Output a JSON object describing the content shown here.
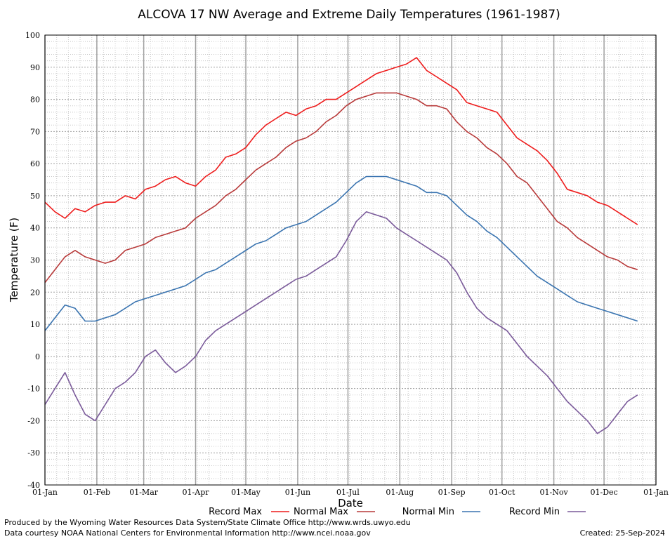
{
  "chart_data": {
    "type": "line",
    "title": "ALCOVA 17 NW Average and Extreme Daily Temperatures (1961-1987)",
    "xlabel": "Date",
    "ylabel": "Temperature (F)",
    "ylim": [
      -40,
      100
    ],
    "yticks": [
      "100",
      "90",
      "80",
      "70",
      "60",
      "50",
      "40",
      "30",
      "20",
      "10",
      "0",
      "-10",
      "-20",
      "-30",
      "-40"
    ],
    "xticks": [
      "01-Jan",
      "01-Feb",
      "01-Mar",
      "01-Apr",
      "01-May",
      "01-Jun",
      "01-Jul",
      "01-Aug",
      "01-Sep",
      "01-Oct",
      "01-Nov",
      "01-Dec",
      "01-Jan"
    ],
    "grid": true,
    "legend_position": "bottom",
    "month_x": [
      1,
      32,
      60,
      91,
      121,
      152,
      182,
      213,
      244,
      274,
      305,
      335,
      366
    ],
    "series": [
      {
        "name": "Record Max",
        "color": "#ee1c1c",
        "values": [
          48,
          45,
          43,
          46,
          45,
          47,
          48,
          48,
          50,
          49,
          52,
          53,
          55,
          56,
          54,
          53,
          56,
          58,
          62,
          63,
          65,
          69,
          72,
          74,
          76,
          75,
          77,
          78,
          80,
          80,
          82,
          84,
          86,
          88,
          89,
          90,
          91,
          93,
          89,
          87,
          85,
          83,
          79,
          78,
          77,
          76,
          72,
          68,
          66,
          64,
          61,
          57,
          52,
          51,
          50,
          48,
          47,
          45,
          43,
          41
        ],
        "x": [
          1,
          7,
          13,
          19,
          25,
          31,
          37,
          43,
          49,
          55,
          61,
          67,
          73,
          79,
          85,
          91,
          97,
          103,
          109,
          115,
          121,
          127,
          133,
          139,
          145,
          151,
          157,
          163,
          169,
          175,
          181,
          187,
          193,
          199,
          205,
          211,
          217,
          223,
          229,
          235,
          241,
          247,
          253,
          259,
          265,
          271,
          277,
          283,
          289,
          295,
          301,
          307,
          313,
          319,
          325,
          331,
          337,
          343,
          349,
          355
        ]
      },
      {
        "name": "Normal Max",
        "color": "#b83a3a",
        "values": [
          23,
          27,
          31,
          33,
          31,
          30,
          29,
          30,
          33,
          34,
          35,
          37,
          38,
          39,
          40,
          43,
          45,
          47,
          50,
          52,
          55,
          58,
          60,
          62,
          65,
          67,
          68,
          70,
          73,
          75,
          78,
          80,
          81,
          82,
          82,
          82,
          81,
          80,
          78,
          78,
          77,
          73,
          70,
          68,
          65,
          63,
          60,
          56,
          54,
          50,
          46,
          42,
          40,
          37,
          35,
          33,
          31,
          30,
          28,
          27
        ],
        "x": [
          1,
          7,
          13,
          19,
          25,
          31,
          37,
          43,
          49,
          55,
          61,
          67,
          73,
          79,
          85,
          91,
          97,
          103,
          109,
          115,
          121,
          127,
          133,
          139,
          145,
          151,
          157,
          163,
          169,
          175,
          181,
          187,
          193,
          199,
          205,
          211,
          217,
          223,
          229,
          235,
          241,
          247,
          253,
          259,
          265,
          271,
          277,
          283,
          289,
          295,
          301,
          307,
          313,
          319,
          325,
          331,
          337,
          343,
          349,
          355
        ]
      },
      {
        "name": "Normal Min",
        "color": "#3a74b0",
        "values": [
          8,
          12,
          16,
          15,
          11,
          11,
          12,
          13,
          15,
          17,
          18,
          19,
          20,
          21,
          22,
          24,
          26,
          27,
          29,
          31,
          33,
          35,
          36,
          38,
          40,
          41,
          42,
          44,
          46,
          48,
          51,
          54,
          56,
          56,
          56,
          55,
          54,
          53,
          51,
          51,
          50,
          47,
          44,
          42,
          39,
          37,
          34,
          31,
          28,
          25,
          23,
          21,
          19,
          17,
          16,
          15,
          14,
          13,
          12,
          11
        ],
        "x": [
          1,
          7,
          13,
          19,
          25,
          31,
          37,
          43,
          49,
          55,
          61,
          67,
          73,
          79,
          85,
          91,
          97,
          103,
          109,
          115,
          121,
          127,
          133,
          139,
          145,
          151,
          157,
          163,
          169,
          175,
          181,
          187,
          193,
          199,
          205,
          211,
          217,
          223,
          229,
          235,
          241,
          247,
          253,
          259,
          265,
          271,
          277,
          283,
          289,
          295,
          301,
          307,
          313,
          319,
          325,
          331,
          337,
          343,
          349,
          355
        ]
      },
      {
        "name": "Record Min",
        "color": "#7a5a9a",
        "values": [
          -15,
          -10,
          -5,
          -12,
          -18,
          -20,
          -15,
          -10,
          -8,
          -5,
          0,
          2,
          -2,
          -5,
          -3,
          0,
          5,
          8,
          10,
          12,
          14,
          16,
          18,
          20,
          22,
          24,
          25,
          27,
          29,
          31,
          36,
          42,
          45,
          44,
          43,
          40,
          38,
          36,
          34,
          32,
          30,
          26,
          20,
          15,
          12,
          10,
          8,
          4,
          0,
          -3,
          -6,
          -10,
          -14,
          -17,
          -20,
          -24,
          -22,
          -18,
          -14,
          -12
        ],
        "x": [
          1,
          7,
          13,
          19,
          25,
          31,
          37,
          43,
          49,
          55,
          61,
          67,
          73,
          79,
          85,
          91,
          97,
          103,
          109,
          115,
          121,
          127,
          133,
          139,
          145,
          151,
          157,
          163,
          169,
          175,
          181,
          187,
          193,
          199,
          205,
          211,
          217,
          223,
          229,
          235,
          241,
          247,
          253,
          259,
          265,
          271,
          277,
          283,
          289,
          295,
          301,
          307,
          313,
          319,
          325,
          331,
          337,
          343,
          349,
          355
        ]
      }
    ]
  },
  "footer": {
    "line1": "Produced by the Wyoming Water Resources Data System/State Climate Office http://www.wrds.uwyo.edu",
    "line2": "Data courtesy NOAA National Centers for Environmental Information http://www.ncei.noaa.gov",
    "created": "Created: 25-Sep-2024"
  }
}
